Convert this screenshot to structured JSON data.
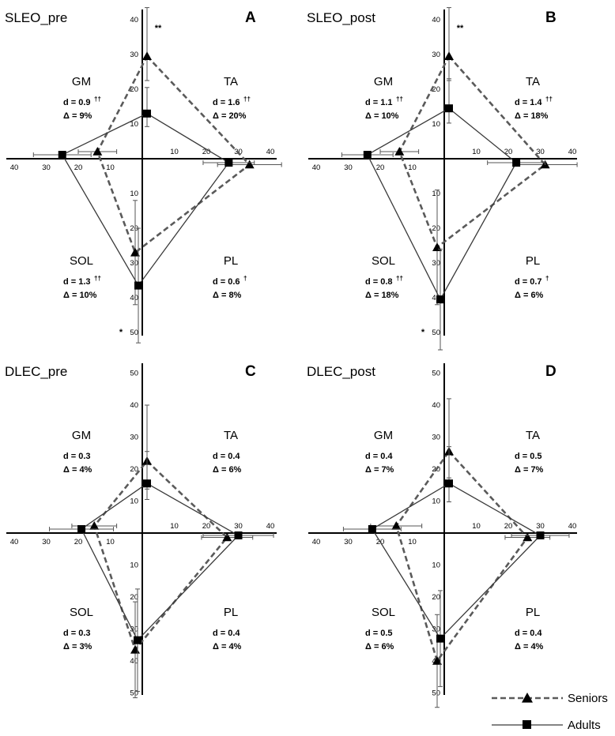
{
  "legend": {
    "items": [
      {
        "label": "Seniors",
        "style": "dashed",
        "marker": "triangle"
      },
      {
        "label": "Adults",
        "style": "solid",
        "marker": "square"
      }
    ]
  },
  "colors": {
    "seniors": "#5a5a5a",
    "adults": "#3a3a3a",
    "axis": "#000000",
    "error": "#555555"
  },
  "chart_data": [
    {
      "type": "radar",
      "letter": "A",
      "title": "SLEO_pre",
      "axes": [
        "TA",
        "PL",
        "SOL",
        "GM"
      ],
      "x_ticks_right": [
        "10",
        "20",
        "30",
        "40"
      ],
      "x_ticks_left": [
        "40",
        "30",
        "20",
        "10"
      ],
      "y_ticks_up": [
        "10",
        "20",
        "30",
        "40",
        "50"
      ],
      "y_ticks_down": [
        "10",
        "20",
        "30",
        "40",
        "50"
      ],
      "series": [
        {
          "name": "Seniors",
          "values": {
            "TA": 29.5,
            "PL": 33.5,
            "SOL": 27.0,
            "GM": 14.0
          },
          "errors": {
            "TA": 14.0,
            "PL": 10.0,
            "SOL": 15.0,
            "GM": 6.0
          }
        },
        {
          "name": "Adults",
          "values": {
            "TA": 13.0,
            "PL": 27.0,
            "SOL": 36.5,
            "GM": 25.0
          },
          "errors": {
            "TA": 7.5,
            "PL": 8.0,
            "SOL": 16.5,
            "GM": 9.0
          }
        }
      ],
      "annotations": {
        "GM": {
          "name": "GM",
          "d": "d = 0.9",
          "sup": "††",
          "delta": "Δ = 9%"
        },
        "TA": {
          "name": "TA",
          "d": "d = 1.6",
          "sup": "††",
          "delta": "Δ = 20%"
        },
        "SOL": {
          "name": "SOL",
          "d": "d = 1.3",
          "sup": "††",
          "delta": "Δ = 10%"
        },
        "PL": {
          "name": "PL",
          "d": "d = 0.6",
          "sup": "†",
          "delta": "Δ = 8%"
        }
      },
      "sig_top": "**",
      "sig_bottom": "*"
    },
    {
      "type": "radar",
      "letter": "B",
      "title": "SLEO_post",
      "axes": [
        "TA",
        "PL",
        "SOL",
        "GM"
      ],
      "x_ticks_right": [
        "10",
        "20",
        "30",
        "40"
      ],
      "x_ticks_left": [
        "40",
        "30",
        "20",
        "10"
      ],
      "y_ticks_up": [
        "10",
        "20",
        "30",
        "40",
        "50"
      ],
      "y_ticks_down": [
        "10",
        "20",
        "30",
        "40",
        "50"
      ],
      "series": [
        {
          "name": "Seniors",
          "values": {
            "TA": 29.5,
            "PL": 31.5,
            "SOL": 25.5,
            "GM": 14.0
          },
          "errors": {
            "TA": 14.0,
            "PL": 10.0,
            "SOL": 16.5,
            "GM": 6.0
          }
        },
        {
          "name": "Adults",
          "values": {
            "TA": 14.5,
            "PL": 22.5,
            "SOL": 40.5,
            "GM": 24.0
          },
          "errors": {
            "TA": 8.5,
            "PL": 9.0,
            "SOL": 14.5,
            "GM": 8.0
          }
        }
      ],
      "annotations": {
        "GM": {
          "name": "GM",
          "d": "d = 1.1",
          "sup": "††",
          "delta": "Δ = 10%"
        },
        "TA": {
          "name": "TA",
          "d": "d = 1.4",
          "sup": "††",
          "delta": "Δ = 18%"
        },
        "SOL": {
          "name": "SOL",
          "d": "d = 0.8",
          "sup": "††",
          "delta": "Δ = 18%"
        },
        "PL": {
          "name": "PL",
          "d": "d = 0.7",
          "sup": "†",
          "delta": "Δ = 6%"
        }
      },
      "sig_top": "**",
      "sig_bottom": "*"
    },
    {
      "type": "radar",
      "letter": "C",
      "title": "DLEC_pre",
      "axes": [
        "TA",
        "PL",
        "SOL",
        "GM"
      ],
      "x_ticks_right": [
        "10",
        "20",
        "30",
        "40"
      ],
      "x_ticks_left": [
        "40",
        "30",
        "20",
        "10"
      ],
      "y_ticks_up": [
        "10",
        "20",
        "30",
        "40",
        "50"
      ],
      "y_ticks_down": [
        "10",
        "20",
        "30",
        "40",
        "50"
      ],
      "series": [
        {
          "name": "Seniors",
          "values": {
            "TA": 22.5,
            "PL": 26.5,
            "SOL": 36.5,
            "GM": 15.0
          },
          "errors": {
            "TA": 17.5,
            "PL": 8.0,
            "SOL": 15.0,
            "GM": 7.0
          }
        },
        {
          "name": "Adults",
          "values": {
            "TA": 15.5,
            "PL": 30.0,
            "SOL": 33.5,
            "GM": 19.0
          },
          "errors": {
            "TA": 10.0,
            "PL": 11.0,
            "SOL": 16.0,
            "GM": 10.0
          }
        }
      ],
      "annotations": {
        "GM": {
          "name": "GM",
          "d": "d = 0.3",
          "sup": "",
          "delta": "Δ = 4%"
        },
        "TA": {
          "name": "TA",
          "d": "d = 0.4",
          "sup": "",
          "delta": "Δ = 6%"
        },
        "SOL": {
          "name": "SOL",
          "d": "d = 0.3",
          "sup": "",
          "delta": "Δ = 3%"
        },
        "PL": {
          "name": "PL",
          "d": "d = 0.4",
          "sup": "",
          "delta": "Δ = 4%"
        }
      },
      "sig_top": "",
      "sig_bottom": ""
    },
    {
      "type": "radar",
      "letter": "D",
      "title": "DLEC_post",
      "axes": [
        "TA",
        "PL",
        "SOL",
        "GM"
      ],
      "x_ticks_right": [
        "10",
        "20",
        "30",
        "40"
      ],
      "x_ticks_left": [
        "40",
        "30",
        "20",
        "10"
      ],
      "y_ticks_up": [
        "10",
        "20",
        "30",
        "40",
        "50"
      ],
      "y_ticks_down": [
        "10",
        "20",
        "30",
        "40",
        "50"
      ],
      "series": [
        {
          "name": "Seniors",
          "values": {
            "TA": 25.5,
            "PL": 26.0,
            "SOL": 40.0,
            "GM": 15.0
          },
          "errors": {
            "TA": 16.5,
            "PL": 7.0,
            "SOL": 14.5,
            "GM": 8.0
          }
        },
        {
          "name": "Adults",
          "values": {
            "TA": 15.5,
            "PL": 30.0,
            "SOL": 33.0,
            "GM": 22.5
          },
          "errors": {
            "TA": 11.5,
            "PL": 9.0,
            "SOL": 15.0,
            "GM": 9.0
          }
        }
      ],
      "annotations": {
        "GM": {
          "name": "GM",
          "d": "d = 0.4",
          "sup": "",
          "delta": "Δ = 7%"
        },
        "TA": {
          "name": "TA",
          "d": "d = 0.5",
          "sup": "",
          "delta": "Δ = 7%"
        },
        "SOL": {
          "name": "SOL",
          "d": "d = 0.5",
          "sup": "",
          "delta": "Δ = 6%"
        },
        "PL": {
          "name": "PL",
          "d": "d = 0.4",
          "sup": "",
          "delta": "Δ = 4%"
        }
      },
      "sig_top": "",
      "sig_bottom": ""
    }
  ]
}
